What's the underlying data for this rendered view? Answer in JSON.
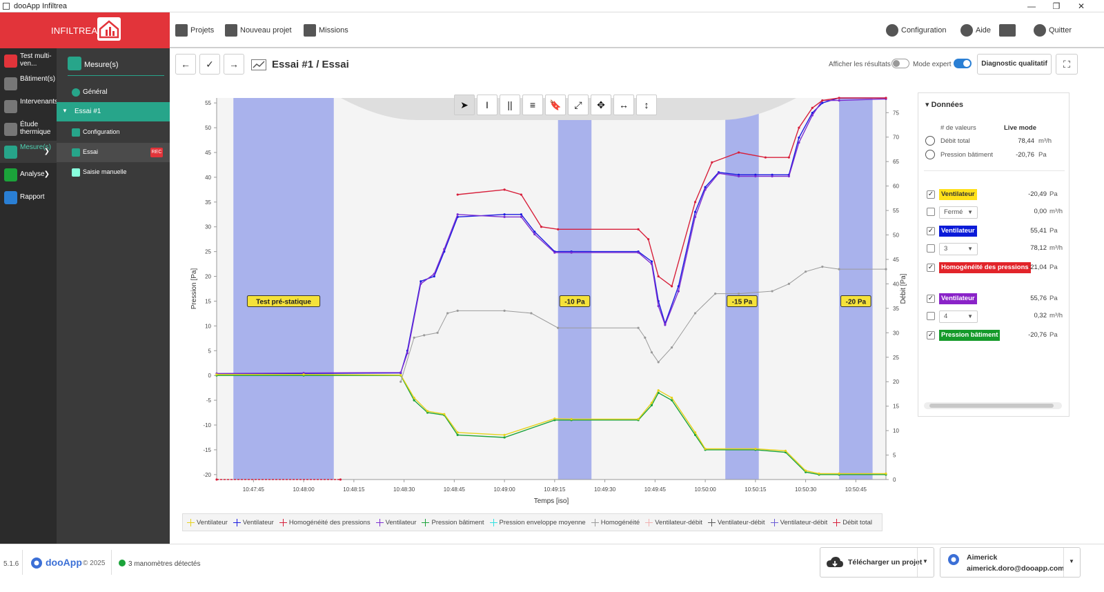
{
  "window": {
    "title": "dooApp Infiltrea",
    "min": "—",
    "max": "❐",
    "close": "✕"
  },
  "header": {
    "logo_text": "INFILTREA",
    "nav": [
      {
        "label": "Projets",
        "icon": "server-icon"
      },
      {
        "label": "Nouveau projet",
        "icon": "edit-icon"
      },
      {
        "label": "Missions",
        "icon": "calendar-icon"
      },
      {
        "label": "Configuration",
        "icon": "gear-icon"
      },
      {
        "label": "Aide",
        "icon": "bulb-icon"
      },
      {
        "label": "",
        "icon": "news-icon"
      },
      {
        "label": "Quitter",
        "icon": "power-icon"
      }
    ]
  },
  "sidebar": {
    "items": [
      {
        "label": "Test multi-ven...",
        "color": "#e2343a"
      },
      {
        "label": "Bâtiment(s)",
        "color": "#777777"
      },
      {
        "label": "Intervenants",
        "color": "#777777"
      },
      {
        "label": "Étude thermique",
        "color": "#777777"
      },
      {
        "label": "Mesure(s)",
        "color": "#27a58a"
      },
      {
        "label": "Analyse",
        "color": "#1ba33a"
      },
      {
        "label": "Rapport",
        "color": "#2a7fd4"
      }
    ]
  },
  "subsidebar": {
    "title": "Mesure(s)",
    "items": [
      {
        "label": "Général"
      },
      {
        "label": "Essai #1"
      },
      {
        "label": "Configuration"
      },
      {
        "label": "Essai"
      },
      {
        "label": "Saisie manuelle"
      }
    ],
    "rec": "REC"
  },
  "toolbar": {
    "back": "←",
    "check": "✓",
    "forward": "→",
    "title": "Essai #1 / Essai",
    "show_results_label": "Afficher les résultats",
    "expert_label": "Mode expert",
    "diag_label": "Diagnostic qualitatif",
    "fullscreen": "⛶"
  },
  "chart_tools": [
    "➤",
    "I",
    "||",
    "≡",
    "🔖",
    "⤢",
    "✥",
    "↔",
    "↕"
  ],
  "chart_data": {
    "type": "line",
    "xlabel": "Temps [iso]",
    "ylabel": "Pression [Pa]",
    "y2label": "Débit [Pa]",
    "xlim": [
      "10:47:34",
      "10:50:54"
    ],
    "ylim": [
      -21,
      56
    ],
    "y2lim": [
      0,
      78
    ],
    "xticks": [
      "10:47:45",
      "10:48:00",
      "10:48:15",
      "10:48:30",
      "10:48:45",
      "10:49:00",
      "10:49:15",
      "10:49:30",
      "10:49:45",
      "10:50:00",
      "10:50:15",
      "10:50:30",
      "10:50:45"
    ],
    "yticks": [
      55,
      50,
      45,
      40,
      35,
      30,
      25,
      20,
      15,
      10,
      5,
      0,
      -5,
      -10,
      -15,
      -20
    ],
    "y2ticks": [
      75,
      70,
      65,
      60,
      55,
      50,
      45,
      40,
      35,
      30,
      25,
      20,
      15,
      10,
      5,
      0
    ],
    "bands": [
      {
        "from": "10:47:39",
        "to": "10:48:09",
        "label": "Test pré-statique"
      },
      {
        "from": "10:49:16",
        "to": "10:49:26",
        "label": "-10 Pa"
      },
      {
        "from": "10:50:06",
        "to": "10:50:16",
        "label": "-15 Pa"
      },
      {
        "from": "10:50:40",
        "to": "10:50:50",
        "label": "-20 Pa"
      }
    ],
    "series": [
      {
        "name": "Ventilateur",
        "color": "#1a1ae0",
        "axis": "left",
        "x": [
          "10:47:34",
          "10:48:00",
          "10:48:29",
          "10:48:31",
          "10:48:35",
          "10:48:39",
          "10:48:42",
          "10:48:46",
          "10:49:00",
          "10:49:05",
          "10:49:09",
          "10:49:15",
          "10:49:20",
          "10:49:40",
          "10:49:44",
          "10:49:46",
          "10:49:48",
          "10:49:52",
          "10:49:57",
          "10:50:00",
          "10:50:04",
          "10:50:10",
          "10:50:15",
          "10:50:20",
          "10:50:25",
          "10:50:28",
          "10:50:32",
          "10:50:35",
          "10:50:40",
          "10:50:54"
        ],
        "y": [
          0.3,
          0.4,
          0.5,
          5,
          19,
          20,
          25,
          32,
          32.5,
          32.5,
          29,
          25,
          25,
          25,
          23,
          15,
          10.5,
          18,
          33,
          38,
          41,
          40.5,
          40.5,
          40.5,
          40.5,
          48,
          53,
          55,
          56,
          56
        ]
      },
      {
        "name": "Ventilateur",
        "color": "#7b2dd1",
        "axis": "left",
        "x": [
          "10:47:34",
          "10:48:00",
          "10:48:29",
          "10:48:31",
          "10:48:35",
          "10:48:39",
          "10:48:42",
          "10:48:46",
          "10:49:00",
          "10:49:05",
          "10:49:09",
          "10:49:15",
          "10:49:20",
          "10:49:40",
          "10:49:44",
          "10:49:46",
          "10:49:48",
          "10:49:52",
          "10:49:57",
          "10:50:00",
          "10:50:04",
          "10:50:10",
          "10:50:15",
          "10:50:20",
          "10:50:25",
          "10:50:28",
          "10:50:32",
          "10:50:35",
          "10:50:40",
          "10:50:54"
        ],
        "y": [
          0.4,
          0.5,
          0.6,
          4.5,
          18.5,
          20.5,
          25.5,
          32.5,
          32,
          32,
          28.5,
          24.8,
          24.8,
          24.8,
          22.5,
          14,
          10.2,
          17,
          32,
          37.5,
          40.8,
          40.2,
          40.2,
          40.2,
          40.2,
          47,
          52.5,
          55.5,
          55.5,
          55.8
        ]
      },
      {
        "name": "Homogénéité des pressions",
        "color": "#d71f3a",
        "axis": "left",
        "x": [
          "10:48:46",
          "10:49:00",
          "10:49:05",
          "10:49:11",
          "10:49:16",
          "10:49:40",
          "10:49:43",
          "10:49:46",
          "10:49:50",
          "10:49:57",
          "10:50:02",
          "10:50:10",
          "10:50:18",
          "10:50:25",
          "10:50:28",
          "10:50:32",
          "10:50:35",
          "10:50:40",
          "10:50:54"
        ],
        "y": [
          36.5,
          37.5,
          36.5,
          30,
          29.5,
          29.5,
          27.5,
          20,
          18,
          35,
          43,
          45,
          44,
          44,
          50,
          54,
          55.5,
          56,
          56
        ]
      },
      {
        "name": "Pression bâtiment",
        "color": "#1ba33a",
        "axis": "left",
        "x": [
          "10:47:34",
          "10:48:00",
          "10:48:29",
          "10:48:33",
          "10:48:37",
          "10:48:42",
          "10:48:46",
          "10:49:00",
          "10:49:15",
          "10:49:20",
          "10:49:40",
          "10:49:44",
          "10:49:46",
          "10:49:50",
          "10:49:57",
          "10:50:00",
          "10:50:15",
          "10:50:24",
          "10:50:30",
          "10:50:34",
          "10:50:40",
          "10:50:54"
        ],
        "y": [
          0,
          0,
          0,
          -5,
          -7.5,
          -8,
          -12,
          -12.5,
          -9,
          -9,
          -9,
          -6,
          -3.5,
          -5,
          -12,
          -15,
          -15,
          -15.5,
          -19.5,
          -20,
          -20,
          -20
        ]
      },
      {
        "name": "Ventilateur",
        "color": "#e6d21a",
        "axis": "left",
        "x": [
          "10:47:34",
          "10:48:00",
          "10:48:29",
          "10:48:33",
          "10:48:37",
          "10:48:42",
          "10:48:46",
          "10:49:00",
          "10:49:15",
          "10:49:20",
          "10:49:40",
          "10:49:44",
          "10:49:46",
          "10:49:50",
          "10:49:57",
          "10:50:00",
          "10:50:15",
          "10:50:24",
          "10:50:30",
          "10:50:34",
          "10:50:40",
          "10:50:54"
        ],
        "y": [
          0.2,
          0.2,
          0.1,
          -4.5,
          -7.2,
          -7.8,
          -11.5,
          -12,
          -8.7,
          -8.8,
          -8.8,
          -5.5,
          -3,
          -4.5,
          -11.5,
          -14.8,
          -14.8,
          -15.2,
          -19.2,
          -19.8,
          -19.8,
          -19.8
        ]
      },
      {
        "name": "Homogénéité",
        "color": "#9a9a9a",
        "axis": "right",
        "x": [
          "10:48:29",
          "10:48:33",
          "10:48:36",
          "10:48:40",
          "10:48:43",
          "10:48:46",
          "10:49:00",
          "10:49:08",
          "10:49:16",
          "10:49:40",
          "10:49:42",
          "10:49:44",
          "10:49:46",
          "10:49:50",
          "10:49:57",
          "10:50:03",
          "10:50:10",
          "10:50:20",
          "10:50:25",
          "10:50:30",
          "10:50:35",
          "10:50:40",
          "10:50:54"
        ],
        "y": [
          20,
          29,
          29.5,
          30,
          34,
          34.5,
          34.5,
          34,
          31,
          31,
          29,
          26,
          24,
          27,
          34,
          38,
          38,
          38.5,
          40,
          42.5,
          43.5,
          43,
          43
        ]
      },
      {
        "name": "Ventilateur-débit",
        "color": "#d71f3a",
        "axis": "left",
        "x": [
          "10:47:34",
          "10:48:11"
        ],
        "y": [
          -21,
          -21
        ]
      }
    ]
  },
  "legend": [
    {
      "name": "Ventilateur",
      "color": "#e6d21a"
    },
    {
      "name": "Ventilateur",
      "color": "#1a1ae0"
    },
    {
      "name": "Homogénéité des pressions",
      "color": "#d71f3a"
    },
    {
      "name": "Ventilateur",
      "color": "#7b2dd1"
    },
    {
      "name": "Pression bâtiment",
      "color": "#1ba33a"
    },
    {
      "name": "Pression enveloppe moyenne",
      "color": "#2ee0e0"
    },
    {
      "name": "Homogénéité",
      "color": "#9a9a9a"
    },
    {
      "name": "Ventilateur-débit",
      "color": "#f0b0b0"
    },
    {
      "name": "Ventilateur-débit",
      "color": "#555555"
    },
    {
      "name": "Ventilateur-débit",
      "color": "#6a5ad6"
    },
    {
      "name": "Débit total",
      "color": "#d71f3a"
    }
  ],
  "data_panel": {
    "title": "Données",
    "col_values": "# de valeurs",
    "col_mode": "Live mode",
    "summary": [
      {
        "label": "Débit total",
        "value": "78,44",
        "unit": "m³/h"
      },
      {
        "label": "Pression bâtiment",
        "value": "-20,76",
        "unit": "Pa"
      }
    ],
    "rows": [
      {
        "type": "badge",
        "checked": true,
        "label": "Ventilateur",
        "color": "#ffe01a",
        "text_color": "#333333",
        "value": "-20,49",
        "unit": "Pa"
      },
      {
        "type": "select",
        "checked": false,
        "label": "Fermé",
        "value": "0,00",
        "unit": "m³/h"
      },
      {
        "type": "badge",
        "checked": true,
        "label": "Ventilateur",
        "color": "#0b1bd8",
        "text_color": "#ffffff",
        "value": "55,41",
        "unit": "Pa"
      },
      {
        "type": "select",
        "checked": false,
        "label": "3",
        "value": "78,12",
        "unit": "m³/h"
      },
      {
        "type": "badge",
        "checked": true,
        "label": "Homogénéité des pressions",
        "color": "#e2242a",
        "text_color": "#ffffff",
        "value": "-21,04",
        "unit": "Pa"
      },
      {
        "type": "badge",
        "checked": true,
        "label": "Ventilateur",
        "color": "#8a23c8",
        "text_color": "#ffffff",
        "value": "55,76",
        "unit": "Pa"
      },
      {
        "type": "select",
        "checked": false,
        "label": "4",
        "value": "0,32",
        "unit": "m³/h"
      },
      {
        "type": "badge",
        "checked": true,
        "label": "Pression bâtiment",
        "color": "#159a2a",
        "text_color": "#ffffff",
        "value": "-20,76",
        "unit": "Pa"
      }
    ]
  },
  "footer": {
    "version": "5.1.6",
    "brand": "dooApp",
    "copyright": "© 2025",
    "status": "3 manomètres détectés",
    "download_label": "Télécharger un projet",
    "user_name": "Aimerick",
    "user_email": "aimerick.doro@dooapp.com"
  }
}
